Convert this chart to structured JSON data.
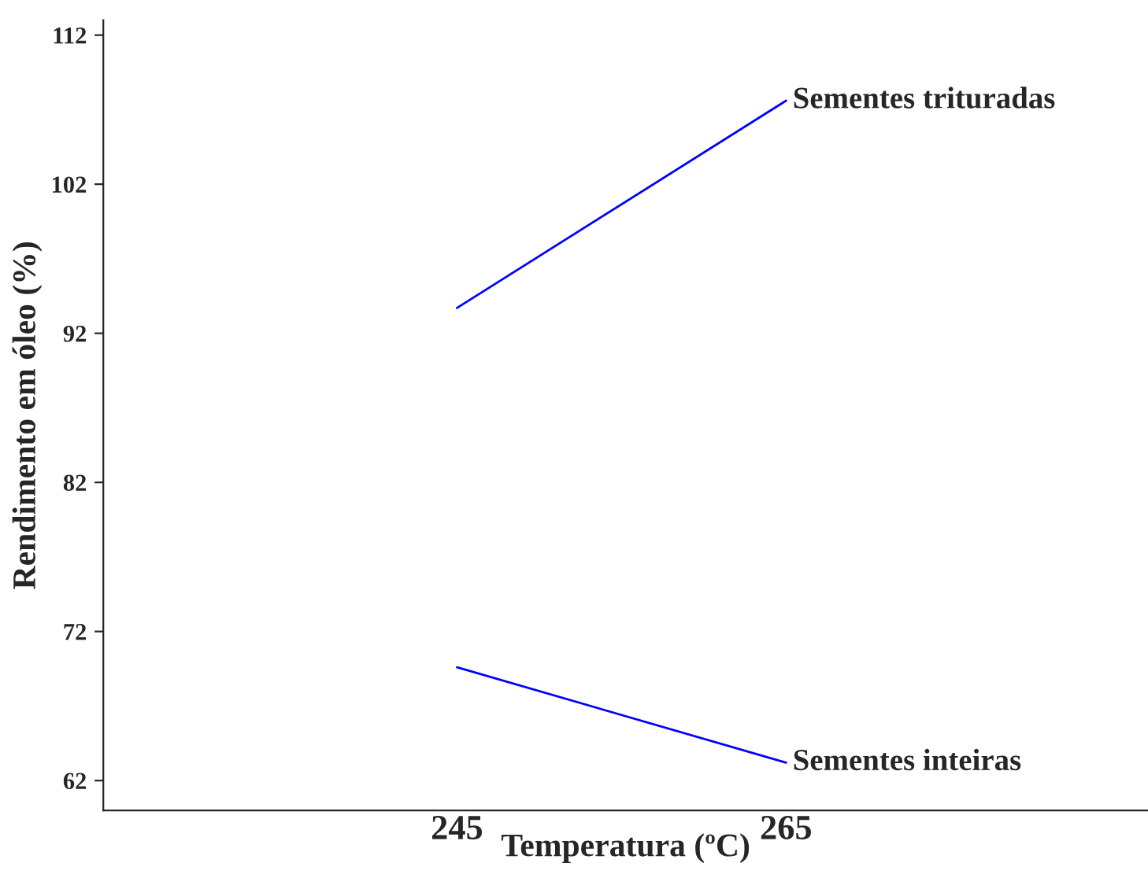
{
  "chart_data": {
    "type": "line",
    "xlabel": "Temperatura (ºC)",
    "ylabel": "Rendimento em óleo (%)",
    "x": [
      245,
      265
    ],
    "series": [
      {
        "name": "Sementes trituradas",
        "color": "#0000ff",
        "values": [
          93.7,
          107.6
        ]
      },
      {
        "name": "Sementes inteiras",
        "color": "#0000ff",
        "values": [
          69.6,
          63.2
        ]
      }
    ],
    "xlim": [
      223.5,
      287
    ],
    "xticks": [
      245,
      265
    ],
    "ylim": [
      60,
      113
    ],
    "yticks": [
      62,
      72,
      82,
      92,
      102,
      112
    ],
    "grid": false,
    "legend": false,
    "marker": "none",
    "line_style": "solid"
  }
}
